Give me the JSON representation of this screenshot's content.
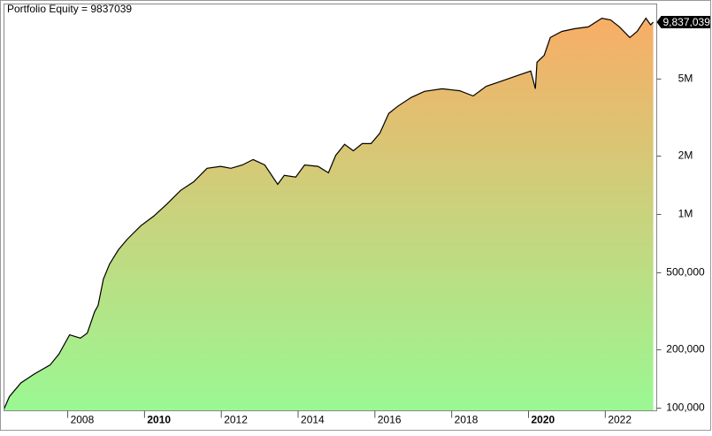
{
  "chart_data": {
    "type": "area",
    "title": "Portfolio Equity = 9837039",
    "x": [
      2006.34,
      2006.48,
      2006.78,
      2007.13,
      2007.54,
      2007.77,
      2008.05,
      2008.33,
      2008.51,
      2008.7,
      2008.79,
      2008.93,
      2009.09,
      2009.32,
      2009.55,
      2009.9,
      2010.24,
      2010.59,
      2010.94,
      2011.28,
      2011.63,
      2011.98,
      2012.25,
      2012.55,
      2012.83,
      2013.13,
      2013.47,
      2013.64,
      2013.94,
      2014.17,
      2014.52,
      2014.79,
      2014.98,
      2015.21,
      2015.44,
      2015.67,
      2015.9,
      2016.13,
      2016.36,
      2016.59,
      2016.94,
      2017.29,
      2017.75,
      2018.21,
      2018.56,
      2018.9,
      2019.25,
      2019.71,
      2020.06,
      2020.18,
      2020.22,
      2020.41,
      2020.57,
      2020.87,
      2021.21,
      2021.56,
      2021.91,
      2022.14,
      2022.37,
      2022.64,
      2022.83,
      2023.06,
      2023.18,
      2023.25
    ],
    "series": [
      {
        "name": "Portfolio Equity",
        "color": "#000000",
        "values": [
          99000,
          114600,
          135000,
          150000,
          167000,
          190000,
          239000,
          230000,
          244000,
          315000,
          339000,
          464000,
          555000,
          657000,
          745000,
          873000,
          980000,
          1135000,
          1330000,
          1475000,
          1730000,
          1770000,
          1730000,
          1800000,
          1920000,
          1800000,
          1430000,
          1590000,
          1560000,
          1800000,
          1770000,
          1640000,
          2020000,
          2300000,
          2130000,
          2320000,
          2320000,
          2630000,
          3320000,
          3610000,
          4010000,
          4320000,
          4450000,
          4350000,
          4090000,
          4590000,
          4840000,
          5210000,
          5500000,
          4450000,
          6100000,
          6630000,
          8190000,
          8810000,
          9100000,
          9290000,
          10300000,
          10100000,
          9290000,
          8190000,
          8810000,
          10300000,
          9520000,
          9837039
        ]
      }
    ],
    "last_value_label": "9,837,039",
    "fill_colors": [
      "#9af893",
      "#f8ad66"
    ],
    "xlim": [
      2006.34,
      2023.34
    ],
    "xticks": [
      2008,
      2010,
      2012,
      2014,
      2016,
      2018,
      2020,
      2022
    ],
    "ylim": [
      96900,
      12200000
    ],
    "log_scale": true,
    "yticks": [
      {
        "value": 100000,
        "label": "100,000"
      },
      {
        "value": 200000,
        "label": "200,000"
      },
      {
        "value": 500000,
        "label": "500,000"
      },
      {
        "value": 1000000,
        "label": "1M"
      },
      {
        "value": 2000000,
        "label": "2M"
      },
      {
        "value": 5000000,
        "label": "5M"
      }
    ]
  }
}
